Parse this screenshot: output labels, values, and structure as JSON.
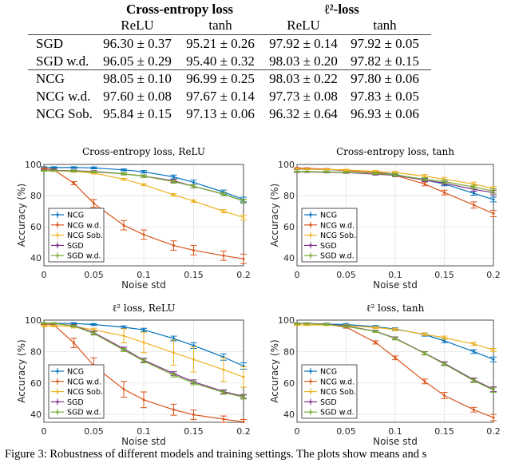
{
  "table": {
    "group_headers": [
      "Cross-entropy loss",
      "ℓ²-loss"
    ],
    "sub_headers": [
      "ReLU",
      "tanh",
      "ReLU",
      "tanh"
    ],
    "rows": [
      {
        "label": "SGD",
        "cells": [
          "96.30 ± 0.37",
          "95.21 ± 0.26",
          "97.92 ± 0.14",
          "97.92 ± 0.05"
        ]
      },
      {
        "label": "SGD w.d.",
        "cells": [
          "96.05 ± 0.29",
          "95.40 ± 0.32",
          "98.03 ± 0.20",
          "97.82 ± 0.15"
        ]
      },
      {
        "label": "NCG",
        "cells": [
          "98.05 ± 0.10",
          "96.99 ± 0.25",
          "98.03 ± 0.22",
          "97.80 ± 0.06"
        ]
      },
      {
        "label": "NCG w.d.",
        "cells": [
          "97.60 ± 0.08",
          "97.67 ± 0.14",
          "97.73 ± 0.08",
          "97.83 ± 0.05"
        ]
      },
      {
        "label": "NCG Sob.",
        "cells": [
          "95.84 ± 0.15",
          "97.13 ± 0.06",
          "96.32 ± 0.64",
          "96.93 ± 0.06"
        ]
      }
    ]
  },
  "caption": "Figure 3: Robustness of different models and training settings. The plots show means and s",
  "colors": {
    "NCG": "#0072BD",
    "NCG w.d.": "#D95319",
    "NCG Sob.": "#EDB120",
    "SGD": "#7E2F8E",
    "SGD w.d.": "#77AC30"
  },
  "chart_data": [
    {
      "type": "line",
      "title": "Cross-entropy loss, ReLU",
      "xlabel": "Noise std",
      "ylabel": "Accuracy (%)",
      "xlim": [
        0,
        0.2
      ],
      "ylim": [
        35,
        100
      ],
      "xticks": [
        "0",
        "0.05",
        "0.1",
        "0.15",
        "0.2"
      ],
      "yticks": [
        "40",
        "60",
        "80",
        "100"
      ],
      "grid": true,
      "legend": "bottom-left",
      "error_bars": true,
      "x": [
        0,
        0.01,
        0.03,
        0.05,
        0.08,
        0.1,
        0.13,
        0.15,
        0.18,
        0.2
      ],
      "series": [
        {
          "name": "NCG",
          "values": [
            98,
            98,
            98,
            97.8,
            96.5,
            95.3,
            92,
            88.5,
            82.3,
            77.5
          ],
          "err": [
            0.5,
            0.5,
            0.5,
            0.6,
            0.6,
            0.8,
            1.2,
            1.5,
            1.3,
            1.5
          ]
        },
        {
          "name": "NCG w.d.",
          "values": [
            97.6,
            96.5,
            88,
            75,
            61,
            55,
            48,
            45,
            41.5,
            39.5
          ],
          "err": [
            0.3,
            0.5,
            1,
            2.5,
            3,
            3,
            3,
            3,
            3,
            3
          ]
        },
        {
          "name": "NCG Sob.",
          "values": [
            96,
            96,
            95.5,
            94.5,
            90.5,
            87,
            80.5,
            76.5,
            70,
            66
          ],
          "err": [
            0.3,
            0.4,
            0.5,
            0.6,
            0.6,
            0.6,
            0.8,
            0.8,
            1,
            1.5
          ]
        },
        {
          "name": "SGD",
          "values": [
            96.3,
            96.2,
            96,
            95.5,
            94,
            92.5,
            89.5,
            86,
            81,
            76.5
          ],
          "err": [
            0.4,
            0.4,
            0.5,
            0.5,
            0.7,
            0.8,
            1,
            1,
            1,
            1.2
          ]
        },
        {
          "name": "SGD w.d.",
          "values": [
            96,
            96,
            95.8,
            95.2,
            94,
            92.5,
            89,
            86,
            81,
            76.5
          ],
          "err": [
            0.3,
            0.3,
            0.5,
            0.5,
            0.7,
            0.8,
            1,
            1,
            1,
            1.2
          ]
        }
      ]
    },
    {
      "type": "line",
      "title": "Cross-entropy loss, tanh",
      "xlabel": "Noise std",
      "ylabel": "Accuracy (%)",
      "xlim": [
        0,
        0.2
      ],
      "ylim": [
        35,
        100
      ],
      "xticks": [
        "0",
        "0.05",
        "0.1",
        "0.15",
        "0.2"
      ],
      "yticks": [
        "40",
        "60",
        "80",
        "100"
      ],
      "grid": true,
      "legend": "bottom-left",
      "error_bars": true,
      "x": [
        0,
        0.01,
        0.03,
        0.05,
        0.08,
        0.1,
        0.13,
        0.15,
        0.18,
        0.2
      ],
      "series": [
        {
          "name": "NCG",
          "values": [
            97,
            97,
            96.8,
            96,
            95,
            93.5,
            90,
            87.5,
            81.5,
            77.5
          ],
          "err": [
            0.3,
            0.3,
            0.4,
            0.5,
            0.6,
            0.8,
            1,
            1.2,
            1.2,
            1.5
          ]
        },
        {
          "name": "NCG w.d.",
          "values": [
            97.7,
            97.5,
            97,
            96,
            95,
            93,
            87.5,
            82,
            74,
            68.5
          ],
          "err": [
            0.2,
            0.3,
            0.4,
            0.5,
            0.6,
            0.8,
            1.2,
            1.5,
            2,
            2
          ]
        },
        {
          "name": "NCG Sob.",
          "values": [
            97.1,
            97,
            96.8,
            96.5,
            95.5,
            94.8,
            92.5,
            90.5,
            87.5,
            84.5
          ],
          "err": [
            0.1,
            0.2,
            0.3,
            0.4,
            0.6,
            0.8,
            1,
            1.2,
            1.2,
            1.2
          ]
        },
        {
          "name": "SGD",
          "values": [
            95.2,
            95.2,
            95,
            94.8,
            93.8,
            93,
            90,
            88,
            84,
            82
          ],
          "err": [
            0.3,
            0.3,
            0.4,
            0.5,
            0.6,
            0.8,
            1,
            1.2,
            1.2,
            1.5
          ]
        },
        {
          "name": "SGD w.d.",
          "values": [
            95.4,
            95.4,
            95.2,
            95,
            94.2,
            93.2,
            90.5,
            89,
            85.5,
            83
          ],
          "err": [
            0.3,
            0.3,
            0.4,
            0.5,
            0.6,
            0.8,
            1,
            1.2,
            1.2,
            1.5
          ]
        }
      ]
    },
    {
      "type": "line",
      "title": "ℓ² loss, ReLU",
      "xlabel": "Noise std",
      "ylabel": "Accuracy (%)",
      "xlim": [
        0,
        0.2
      ],
      "ylim": [
        35,
        100
      ],
      "xticks": [
        "0",
        "0.05",
        "0.1",
        "0.15",
        "0.2"
      ],
      "yticks": [
        "40",
        "60",
        "80",
        "100"
      ],
      "grid": true,
      "legend": "bottom-left",
      "error_bars": true,
      "x": [
        0,
        0.01,
        0.03,
        0.05,
        0.08,
        0.1,
        0.13,
        0.15,
        0.18,
        0.2
      ],
      "series": [
        {
          "name": "NCG",
          "values": [
            98,
            98,
            97.8,
            97.2,
            95.5,
            93.8,
            88.3,
            83.8,
            76.5,
            70.8
          ],
          "err": [
            0.3,
            0.3,
            0.6,
            0.6,
            0.8,
            1,
            1.5,
            1.8,
            2,
            2
          ]
        },
        {
          "name": "NCG w.d.",
          "values": [
            97.7,
            97,
            85.5,
            71,
            56,
            49.3,
            43,
            39.8,
            37,
            35.3
          ],
          "err": [
            0.5,
            0.5,
            3,
            5,
            5,
            5,
            3.5,
            3,
            2,
            1.5
          ]
        },
        {
          "name": "NCG Sob.",
          "values": [
            96.3,
            96.3,
            96,
            93.8,
            90,
            85.8,
            79.3,
            75,
            68.5,
            63.8
          ],
          "err": [
            0.5,
            0.5,
            1,
            1,
            4.5,
            6.5,
            8,
            8,
            7.5,
            6.5
          ]
        },
        {
          "name": "SGD",
          "values": [
            97.9,
            97.8,
            96.5,
            92,
            81.8,
            74.5,
            66,
            60.8,
            54.5,
            51.5
          ],
          "err": [
            0.3,
            0.3,
            0.6,
            1,
            1,
            1.2,
            1.2,
            1.2,
            1.2,
            1.2
          ]
        },
        {
          "name": "SGD w.d.",
          "values": [
            98,
            98,
            96.2,
            91.5,
            81,
            74,
            65,
            60,
            54,
            51
          ],
          "err": [
            0.3,
            0.3,
            0.6,
            1,
            1,
            1.2,
            1.2,
            1.2,
            1.2,
            1.2
          ]
        }
      ]
    },
    {
      "type": "line",
      "title": "ℓ² loss, tanh",
      "xlabel": "Noise std",
      "ylabel": "Accuracy (%)",
      "xlim": [
        0,
        0.2
      ],
      "ylim": [
        35,
        100
      ],
      "xticks": [
        "0",
        "0.05",
        "0.1",
        "0.15",
        "0.2"
      ],
      "yticks": [
        "40",
        "60",
        "80",
        "100"
      ],
      "grid": true,
      "legend": "bottom-left",
      "error_bars": true,
      "x": [
        0,
        0.01,
        0.03,
        0.05,
        0.08,
        0.1,
        0.13,
        0.15,
        0.18,
        0.2
      ],
      "series": [
        {
          "name": "NCG",
          "values": [
            97.8,
            97.8,
            97.5,
            97.2,
            95.8,
            94.3,
            90.8,
            86.8,
            80,
            75
          ],
          "err": [
            0.3,
            0.3,
            0.5,
            0.6,
            0.8,
            0.8,
            1,
            1.2,
            1.2,
            1.5
          ]
        },
        {
          "name": "NCG w.d.",
          "values": [
            97.8,
            97.8,
            97.3,
            95.5,
            85.8,
            76,
            61,
            52,
            43,
            38
          ],
          "err": [
            0.3,
            0.3,
            0.4,
            0.6,
            1,
            1.2,
            1.5,
            2,
            1.5,
            2
          ]
        },
        {
          "name": "NCG Sob.",
          "values": [
            96.9,
            96.9,
            96.9,
            96.5,
            95.3,
            94,
            91,
            88.8,
            84.8,
            81
          ],
          "err": [
            0.3,
            0.3,
            0.4,
            0.5,
            0.6,
            0.8,
            0.8,
            1,
            1,
            1
          ]
        },
        {
          "name": "SGD",
          "values": [
            97.9,
            97.9,
            97.5,
            96.2,
            93,
            88.5,
            79,
            72.5,
            62,
            56
          ],
          "err": [
            0.3,
            0.3,
            0.4,
            0.5,
            0.6,
            0.8,
            1,
            1,
            1.2,
            1.5
          ]
        },
        {
          "name": "SGD w.d.",
          "values": [
            97.8,
            97.8,
            97.3,
            96,
            92.8,
            88.2,
            78.8,
            72,
            61.5,
            55.5
          ],
          "err": [
            0.3,
            0.3,
            0.4,
            0.5,
            0.6,
            0.8,
            1,
            1,
            1.2,
            1.5
          ]
        }
      ]
    }
  ]
}
